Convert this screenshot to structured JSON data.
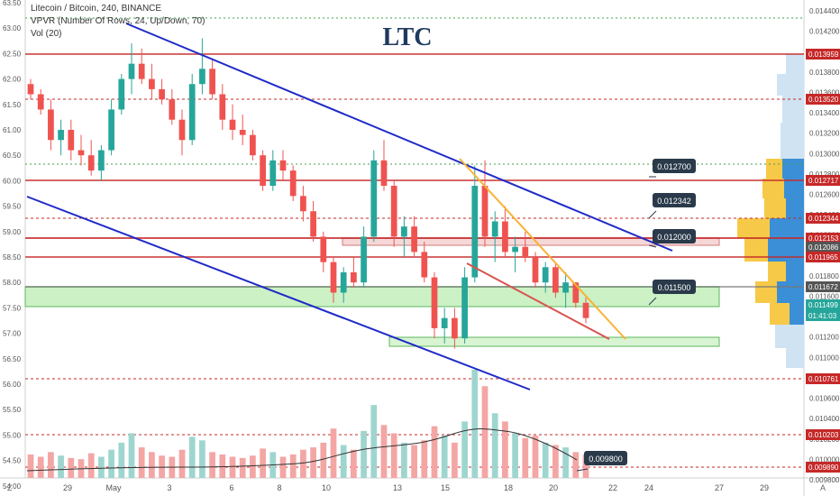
{
  "chart_data": {
    "type": "candlestick",
    "symbol": "Litecoin / Bitcoin, 240, BINANCE",
    "indicators": [
      "VPVR (Number Of Rows, 24, Up/Down, 70)",
      "Vol (20)"
    ],
    "title": "LTC",
    "left_axis_ticks": [
      "63.50",
      "63.00",
      "62.50",
      "62.00",
      "61.50",
      "61.00",
      "60.50",
      "60.00",
      "59.50",
      "59.00",
      "58.50",
      "58.00",
      "57.50",
      "57.00",
      "56.50",
      "56.00",
      "55.50",
      "55.00",
      "54.50",
      "54.00"
    ],
    "right_axis_ticks": [
      "0.014400",
      "0.014200",
      "0.014000",
      "0.013800",
      "0.013600",
      "0.013400",
      "0.013200",
      "0.013000",
      "0.012800",
      "0.012600",
      "0.012400",
      "0.012200",
      "0.012000",
      "0.011800",
      "0.011600",
      "0.011400",
      "0.011200",
      "0.011000",
      "0.010800",
      "0.010600",
      "0.010400",
      "0.010200",
      "0.010000",
      "0.009800"
    ],
    "x_ticks": [
      "29",
      "May",
      "3",
      "6",
      "8",
      "10",
      "13",
      "15",
      "18",
      "20",
      "22",
      "24",
      "27",
      "29"
    ],
    "corner_labels": [
      "Z",
      "A"
    ],
    "price_tags": [
      "0.013959",
      "0.013520",
      "0.012717",
      "0.012344",
      "0.012153",
      "0.012086",
      "0.011965",
      "0.011672",
      "0.011499",
      "01:41:03",
      "0.010761",
      "0.010203",
      "0.009890"
    ],
    "price_tag_colors": {
      "resistance": "#c62828",
      "neutral": "#555555",
      "current": "#26a69a"
    },
    "callouts": [
      "0.012700",
      "0.012342",
      "0.012000",
      "0.011500",
      "0.009800"
    ],
    "candles": [
      [
        61.9,
        62.0,
        61.6,
        61.7
      ],
      [
        61.7,
        61.8,
        61.3,
        61.4
      ],
      [
        61.4,
        61.6,
        60.6,
        60.8
      ],
      [
        60.8,
        61.2,
        60.5,
        61.0
      ],
      [
        61.0,
        61.2,
        60.4,
        60.6
      ],
      [
        60.6,
        60.9,
        60.3,
        60.5
      ],
      [
        60.5,
        60.8,
        60.1,
        60.2
      ],
      [
        60.2,
        60.7,
        60.0,
        60.6
      ],
      [
        60.6,
        61.6,
        60.5,
        61.4
      ],
      [
        61.4,
        62.1,
        61.3,
        62.0
      ],
      [
        62.0,
        62.7,
        61.7,
        62.3
      ],
      [
        62.3,
        62.6,
        61.9,
        62.0
      ],
      [
        62.0,
        62.3,
        61.6,
        61.8
      ],
      [
        61.8,
        62.0,
        61.5,
        61.6
      ],
      [
        61.6,
        61.8,
        61.1,
        61.2
      ],
      [
        61.2,
        61.4,
        60.5,
        60.8
      ],
      [
        60.8,
        62.1,
        60.7,
        61.9
      ],
      [
        61.9,
        62.8,
        61.7,
        62.2
      ],
      [
        62.2,
        62.4,
        61.6,
        61.7
      ],
      [
        61.7,
        61.9,
        61.0,
        61.2
      ],
      [
        61.2,
        61.5,
        60.8,
        61.0
      ],
      [
        61.0,
        61.3,
        60.7,
        60.9
      ],
      [
        60.9,
        61.0,
        60.4,
        60.5
      ],
      [
        60.5,
        60.6,
        59.8,
        59.9
      ],
      [
        59.9,
        60.6,
        59.8,
        60.4
      ],
      [
        60.4,
        60.6,
        60.0,
        60.2
      ],
      [
        60.2,
        60.3,
        59.6,
        59.7
      ],
      [
        59.7,
        59.9,
        59.2,
        59.4
      ],
      [
        59.4,
        59.6,
        58.8,
        58.9
      ],
      [
        58.9,
        59.0,
        58.2,
        58.4
      ],
      [
        58.4,
        58.5,
        57.6,
        57.8
      ],
      [
        57.8,
        58.3,
        57.6,
        58.2
      ],
      [
        58.2,
        58.5,
        57.9,
        58.0
      ],
      [
        58.0,
        59.1,
        57.9,
        58.9
      ],
      [
        58.9,
        60.6,
        58.8,
        60.4
      ],
      [
        60.4,
        60.8,
        59.8,
        59.9
      ],
      [
        59.9,
        60.0,
        58.7,
        58.9
      ],
      [
        58.9,
        59.3,
        58.5,
        59.1
      ],
      [
        59.1,
        59.3,
        58.5,
        58.6
      ],
      [
        58.6,
        58.8,
        58.0,
        58.1
      ],
      [
        58.1,
        58.2,
        56.9,
        57.1
      ],
      [
        57.1,
        57.5,
        56.8,
        57.3
      ],
      [
        57.3,
        57.5,
        56.7,
        56.9
      ],
      [
        56.9,
        58.3,
        56.8,
        58.1
      ],
      [
        58.1,
        60.3,
        58.0,
        59.9
      ],
      [
        59.9,
        60.4,
        58.7,
        58.9
      ],
      [
        58.9,
        59.4,
        58.4,
        59.2
      ],
      [
        59.2,
        59.5,
        58.5,
        58.6
      ],
      [
        58.6,
        58.9,
        58.2,
        58.7
      ],
      [
        58.7,
        59.0,
        58.4,
        58.5
      ],
      [
        58.5,
        58.6,
        57.9,
        58.0
      ],
      [
        58.0,
        58.4,
        57.8,
        58.3
      ],
      [
        58.3,
        58.4,
        57.7,
        57.8
      ],
      [
        57.8,
        58.2,
        57.5,
        58.0
      ],
      [
        58.0,
        58.0,
        57.5,
        57.6
      ],
      [
        57.6,
        57.7,
        57.2,
        57.3
      ]
    ],
    "volumes": [
      20,
      18,
      22,
      19,
      17,
      16,
      21,
      18,
      24,
      30,
      38,
      26,
      22,
      19,
      18,
      24,
      35,
      32,
      22,
      20,
      18,
      17,
      19,
      25,
      22,
      18,
      20,
      24,
      26,
      30,
      42,
      28,
      24,
      40,
      62,
      45,
      38,
      30,
      28,
      32,
      44,
      36,
      30,
      48,
      92,
      78,
      55,
      48,
      38,
      34,
      36,
      30,
      28,
      26,
      22,
      20
    ],
    "volume_unit": "millions"
  }
}
